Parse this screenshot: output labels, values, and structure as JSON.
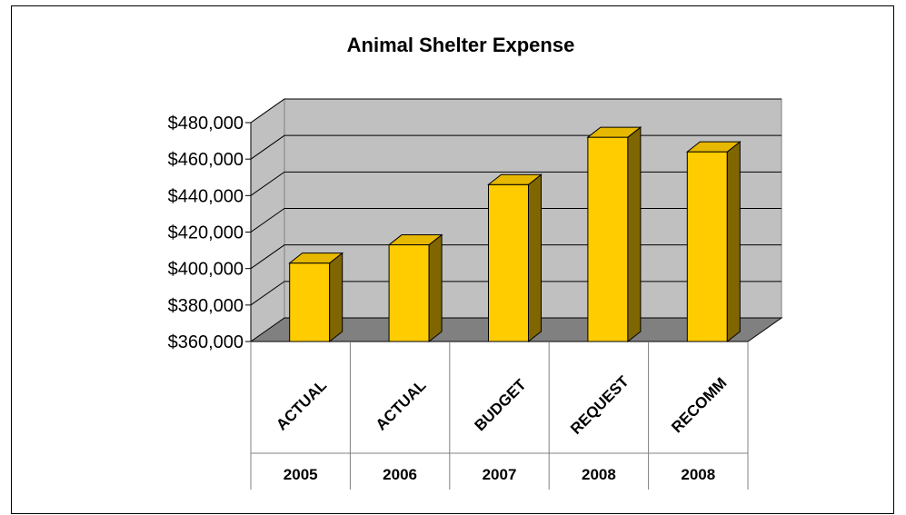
{
  "chart_data": {
    "type": "bar",
    "title": "Animal Shelter Expense",
    "categories": [
      "ACTUAL",
      "ACTUAL",
      "BUDGET",
      "REQUEST",
      "RECOMM"
    ],
    "category_groups": [
      "2005",
      "2006",
      "2007",
      "2008",
      "2008"
    ],
    "values": [
      403000,
      413000,
      446000,
      472000,
      464000
    ],
    "ylim": [
      360000,
      480000
    ],
    "y_ticks": [
      360000,
      380000,
      400000,
      420000,
      440000,
      460000,
      480000
    ],
    "y_tick_labels": [
      "$360,000",
      "$380,000",
      "$400,000",
      "$420,000",
      "$440,000",
      "$460,000",
      "$480,000"
    ],
    "grid": true,
    "three_d": true,
    "xlabel": "",
    "ylabel": ""
  },
  "colors": {
    "bar_front": "#ffcc00",
    "bar_side": "#806600",
    "bar_top": "#e6b800",
    "wall": "#c0c0c0",
    "floor": "#808080",
    "grid": "#000000"
  }
}
